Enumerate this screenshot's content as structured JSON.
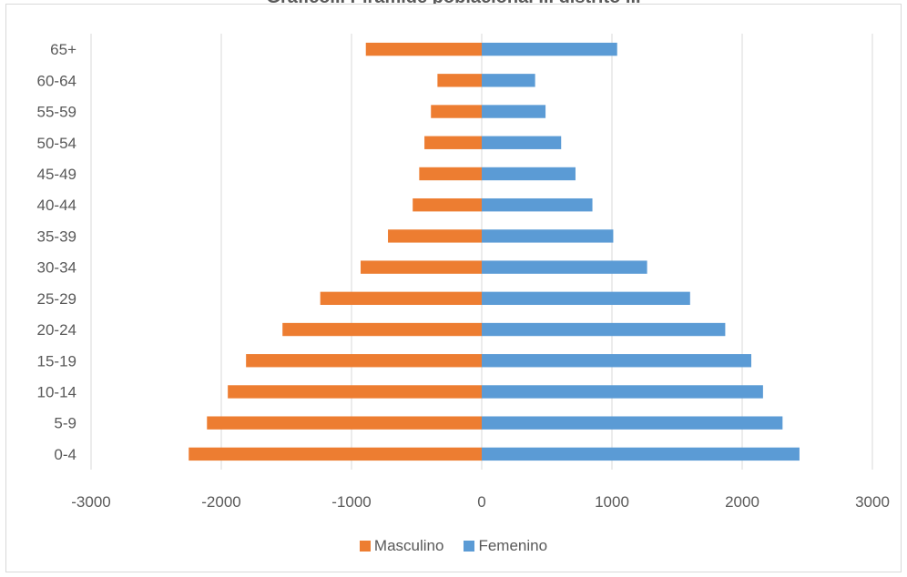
{
  "chart_data": {
    "type": "bar",
    "orientation": "horizontal",
    "stacked": true,
    "title": "Gráfico... Pirámide poblacional ... distrito ...",
    "categories": [
      "0-4",
      "5-9",
      "10-14",
      "15-19",
      "20-24",
      "25-29",
      "30-34",
      "35-39",
      "40-44",
      "45-49",
      "50-54",
      "55-59",
      "60-64",
      "65+"
    ],
    "series": [
      {
        "name": "Masculino",
        "color": "#ED7D31",
        "values": [
          -2250,
          -2110,
          -1950,
          -1810,
          -1530,
          -1240,
          -930,
          -720,
          -530,
          -480,
          -440,
          -390,
          -340,
          -890
        ]
      },
      {
        "name": "Femenino",
        "color": "#5B9BD5",
        "values": [
          2440,
          2310,
          2160,
          2070,
          1870,
          1600,
          1270,
          1010,
          850,
          720,
          610,
          490,
          410,
          1040
        ]
      }
    ],
    "x_ticks": [
      "-3000",
      "-2000",
      "-1000",
      "0",
      "1000",
      "2000",
      "3000"
    ],
    "xlim": [
      -3000,
      3000
    ],
    "grid": true,
    "legend": "bottom"
  }
}
